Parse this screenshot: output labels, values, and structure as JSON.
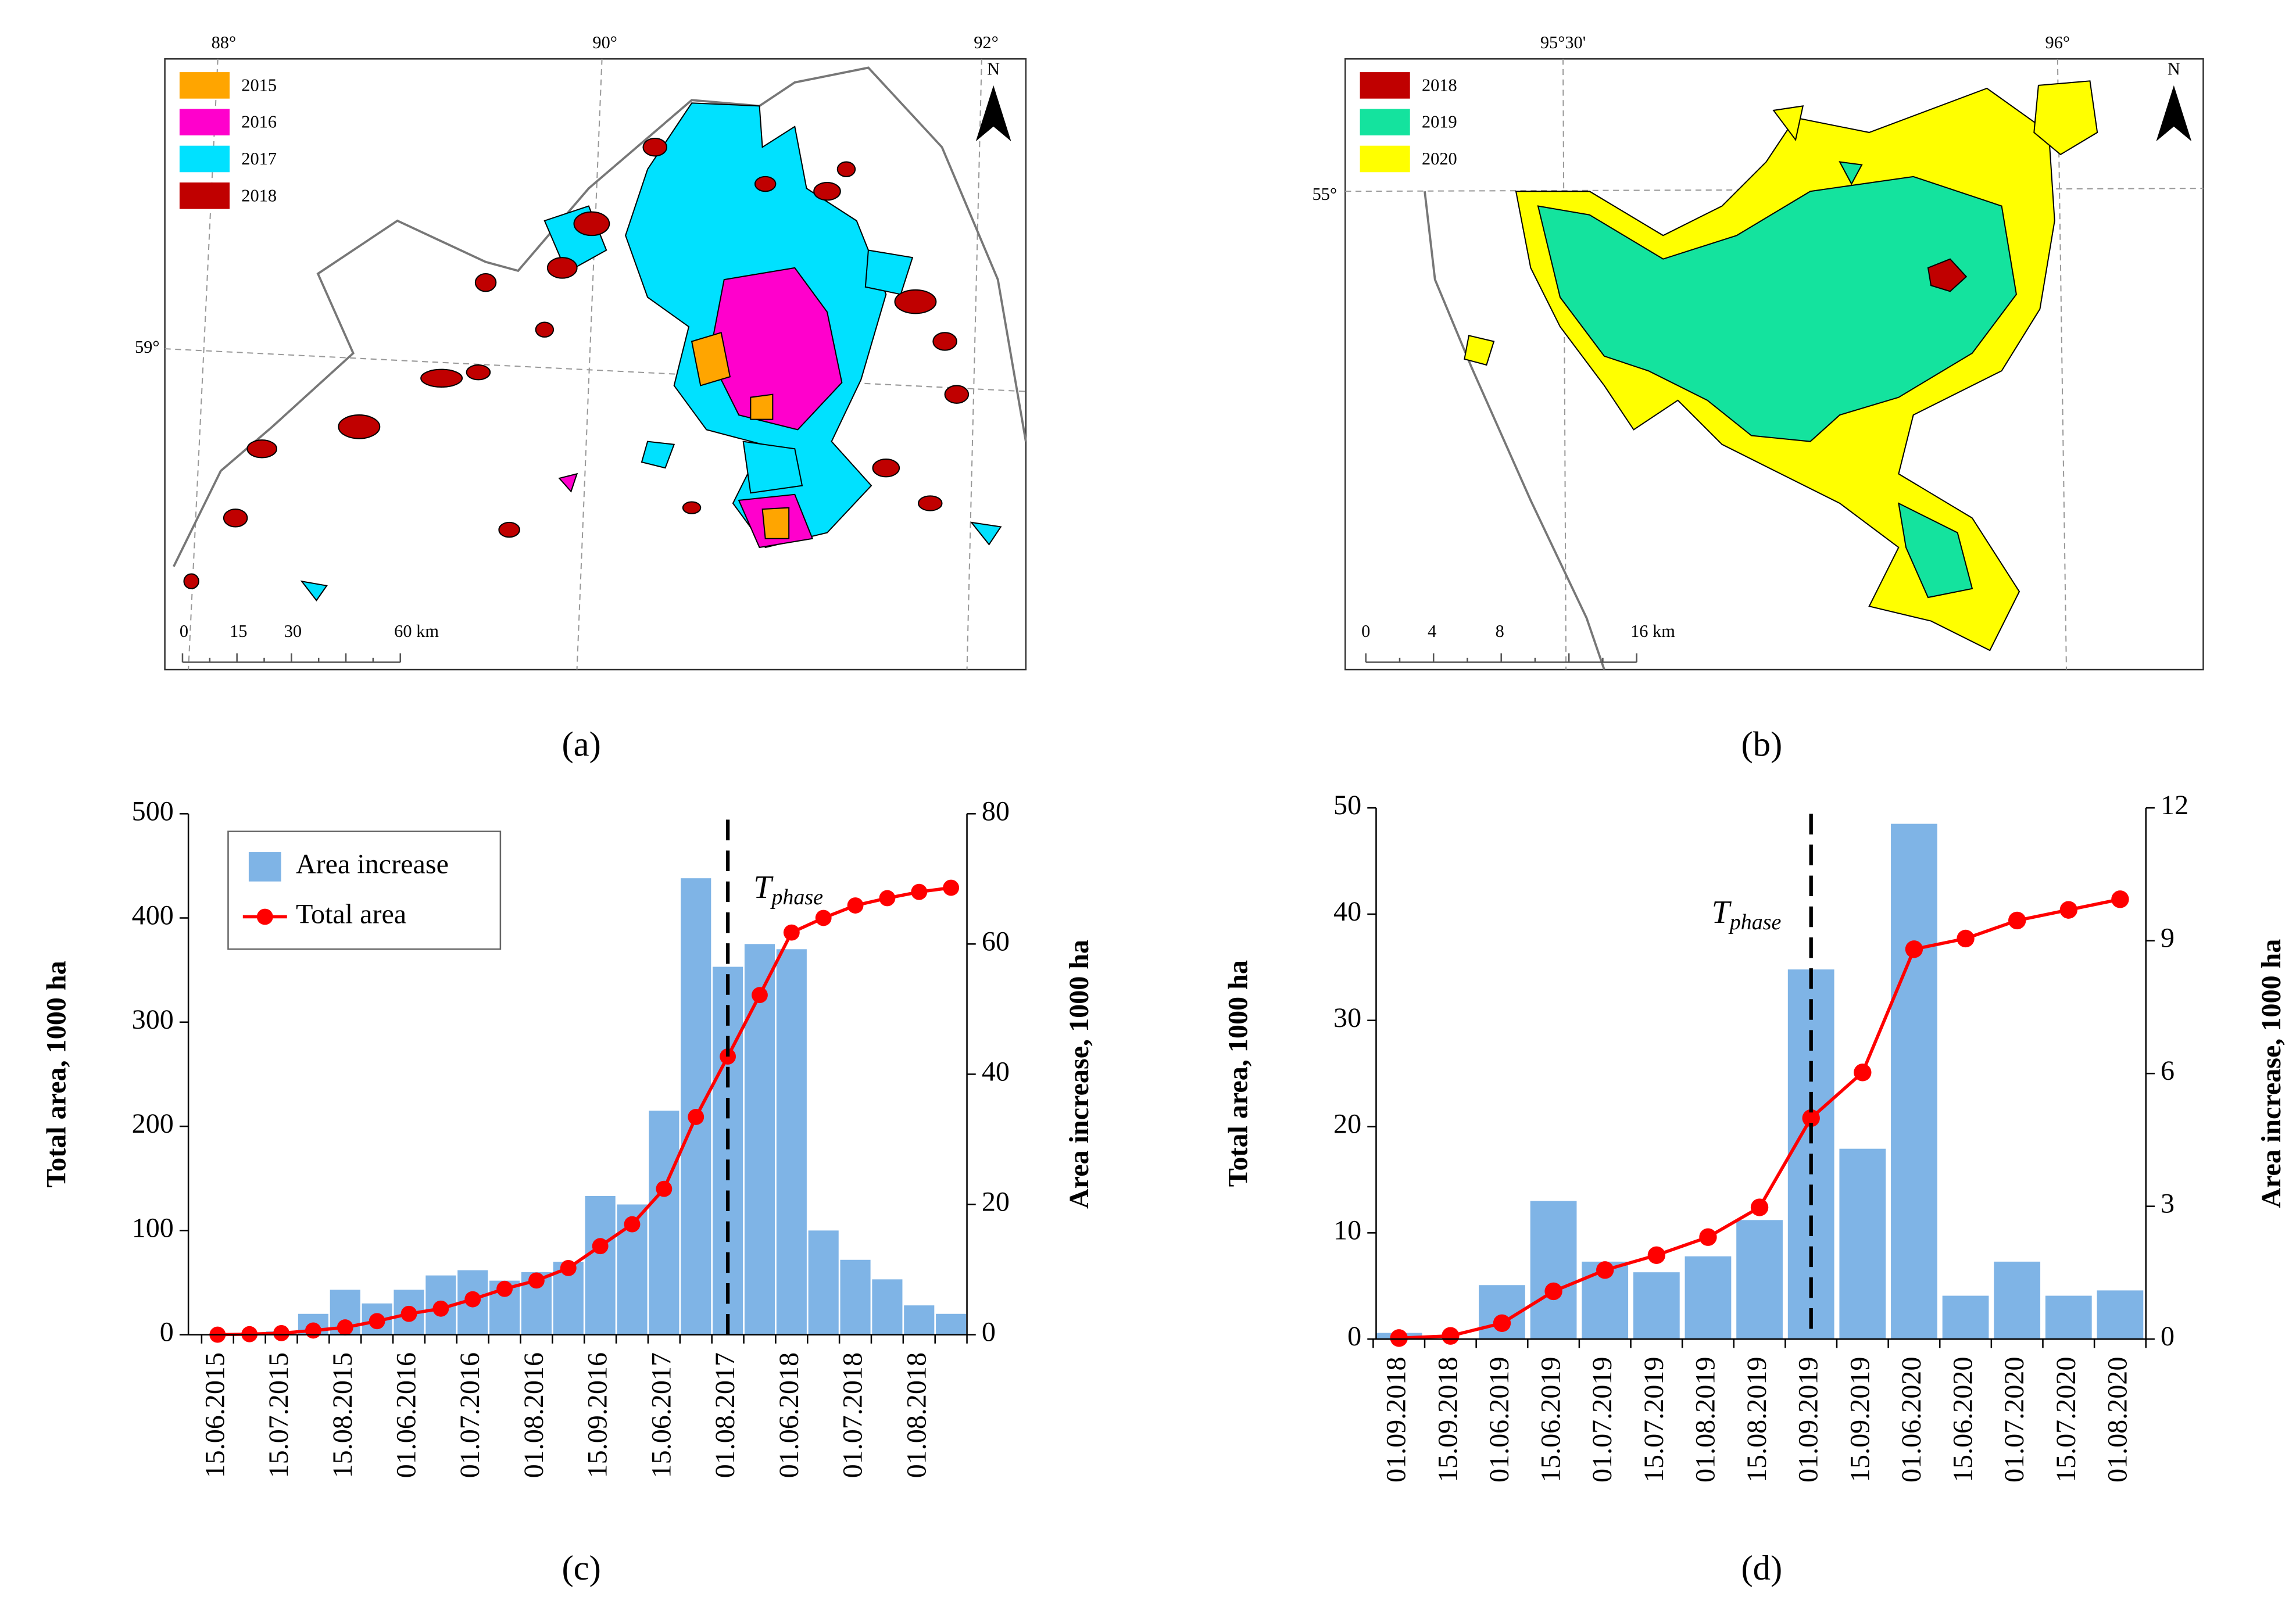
{
  "maps": [
    {
      "caption": "(a)",
      "legend": [
        {
          "label": "2015",
          "color": "#ffa500"
        },
        {
          "label": "2016",
          "color": "#ff00cc"
        },
        {
          "label": "2017",
          "color": "#00e1ff"
        },
        {
          "label": "2018",
          "color": "#c00000"
        }
      ],
      "lon_labels": [
        "88°",
        "90°",
        "92°"
      ],
      "lat_labels": [
        "59°"
      ],
      "north": "N",
      "scale_labels": [
        "0",
        "15",
        "30",
        "60 km"
      ]
    },
    {
      "caption": "(b)",
      "legend": [
        {
          "label": "2018",
          "color": "#c00000"
        },
        {
          "label": "2019",
          "color": "#14e39e"
        },
        {
          "label": "2020",
          "color": "#ffff00"
        }
      ],
      "lon_labels": [
        "95°30'",
        "96°"
      ],
      "lat_labels": [
        "55°"
      ],
      "north": "N",
      "scale_labels": [
        "0",
        "4",
        "8",
        "16 km"
      ]
    }
  ],
  "chart_data": [
    {
      "type": "combo",
      "caption": "(c)",
      "ylabel": "Total area, 1000 ha",
      "y2label": "Area increase, 1000 ha",
      "categories": [
        "15.06.2015",
        null,
        "15.07.2015",
        null,
        "15.08.2015",
        null,
        "01.06.2016",
        null,
        "01.07.2016",
        null,
        "01.08.2016",
        null,
        "15.09.2016",
        null,
        "15.06.2017",
        null,
        "01.08.2017",
        null,
        "01.06.2018",
        null,
        "01.07.2018",
        null,
        "01.08.2018",
        null
      ],
      "series": [
        {
          "name": "Area increase",
          "type": "bar",
          "axis": "y2",
          "color": "#7fb4e6",
          "values": [
            0,
            0.2,
            0.5,
            3.2,
            6.9,
            4.8,
            6.9,
            9.1,
            9.9,
            8.3,
            9.6,
            11.2,
            21.3,
            20,
            34.4,
            70.1,
            56.5,
            60,
            59.2,
            16,
            11.5,
            8.5,
            4.5,
            3.2
          ]
        },
        {
          "name": "Total area",
          "type": "line",
          "axis": "y",
          "color": "#ff0000",
          "values": [
            0,
            0.5,
            1.5,
            4,
            7,
            13,
            20,
            25,
            34,
            44,
            52,
            64,
            85,
            106,
            140,
            209,
            267,
            326,
            386,
            400,
            412,
            419,
            425,
            429
          ]
        }
      ],
      "ylim": [
        0,
        500
      ],
      "yticks": [
        0,
        100,
        200,
        300,
        400,
        500
      ],
      "y2lim": [
        0,
        80
      ],
      "y2ticks": [
        0,
        20,
        40,
        60,
        80
      ],
      "legend": "upper left",
      "annotations": [
        {
          "text": "T",
          "subscript": "phase",
          "category_index": 16
        }
      ]
    },
    {
      "type": "combo",
      "caption": "(d)",
      "ylabel": "Total area, 1000 ha",
      "y2label": "Area increase, 1000 ha",
      "categories": [
        "01.09.2018",
        "15.09.2018",
        "01.06.2019",
        "15.06.2019",
        "01.07.2019",
        "15.07.2019",
        "01.08.2019",
        "15.08.2019",
        "01.09.2019",
        "15.09.2019",
        "01.06.2020",
        "15.06.2020",
        "01.07.2020",
        "15.07.2020",
        "01.08.2020"
      ],
      "series": [
        {
          "type": "bar",
          "axis": "y2",
          "color": "#7fb4e6",
          "values": [
            0.14,
            0,
            1.22,
            3.12,
            1.75,
            1.51,
            1.87,
            2.69,
            8.35,
            4.3,
            11.64,
            0.98,
            1.75,
            0.98,
            1.1
          ]
        },
        {
          "type": "line",
          "axis": "y",
          "color": "#ff0000",
          "values": [
            0.1,
            0.3,
            1.5,
            4.5,
            6.5,
            7.9,
            9.6,
            12.4,
            20.8,
            25.1,
            36.7,
            37.7,
            39.4,
            40.4,
            41.4
          ]
        }
      ],
      "ylim": [
        0,
        50
      ],
      "yticks": [
        0,
        10,
        20,
        30,
        40,
        50
      ],
      "y2lim": [
        0,
        12
      ],
      "y2ticks": [
        0,
        3,
        6,
        9,
        12
      ],
      "annotations": [
        {
          "text": "T",
          "subscript": "phase",
          "category_index": 8
        }
      ]
    }
  ]
}
